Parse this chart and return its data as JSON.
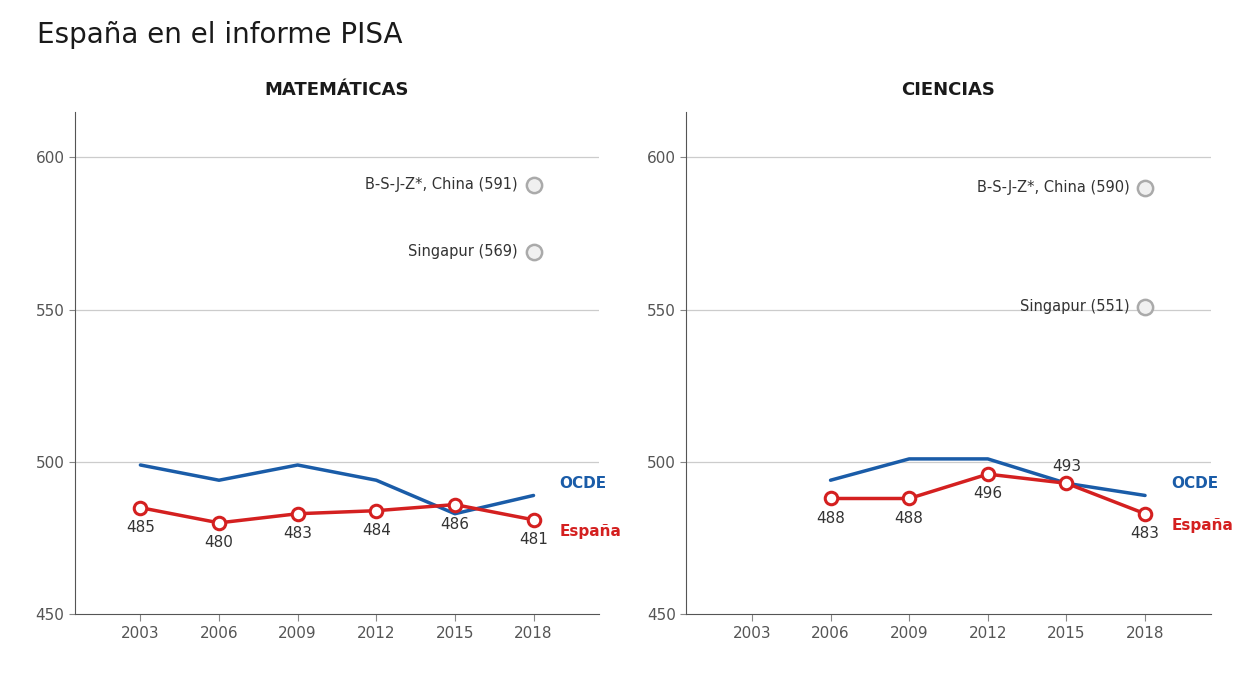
{
  "title": "España en el informe PISA",
  "title_fontsize": 20,
  "subplot_titles": [
    "MATEMÁTICAS",
    "CIENCIAS"
  ],
  "subplot_title_fontsize": 13,
  "mat": {
    "years": [
      2003,
      2006,
      2009,
      2012,
      2015,
      2018
    ],
    "espana": [
      485,
      480,
      483,
      484,
      486,
      481
    ],
    "ocde": [
      499,
      494,
      499,
      494,
      483,
      489
    ],
    "ref_points": [
      {
        "label": "B-S-J-Z*, China (591)",
        "value": 591,
        "year": 2018,
        "label_left": true
      },
      {
        "label": "Singapur (569)",
        "value": 569,
        "year": 2018,
        "label_left": true
      }
    ]
  },
  "sci": {
    "years": [
      2003,
      2006,
      2009,
      2012,
      2015,
      2018
    ],
    "espana_years": [
      2006,
      2009,
      2012,
      2015,
      2018
    ],
    "espana": [
      488,
      488,
      496,
      493,
      483
    ],
    "ocde_years": [
      2006,
      2009,
      2012,
      2015,
      2018
    ],
    "ocde": [
      494,
      501,
      501,
      493,
      489
    ],
    "ref_points": [
      {
        "label": "B-S-J-Z*, China (590)",
        "value": 590,
        "year": 2018,
        "label_left": true
      },
      {
        "label": "Singapur (551)",
        "value": 551,
        "year": 2018,
        "label_left": true
      }
    ]
  },
  "ylim": [
    450,
    615
  ],
  "yticks": [
    450,
    500,
    550,
    600
  ],
  "grid_yticks": [
    500,
    550,
    600
  ],
  "espana_color": "#d42020",
  "ocde_color": "#1a5ca8",
  "ref_color": "#aaaaaa",
  "label_color": "#333333",
  "background_color": "#ffffff",
  "grid_color": "#cccccc",
  "line_width": 2.5,
  "marker_size": 9,
  "value_fontsize": 11,
  "legend_fontsize": 11,
  "ref_fontsize": 10.5,
  "axis_label_fontsize": 11
}
